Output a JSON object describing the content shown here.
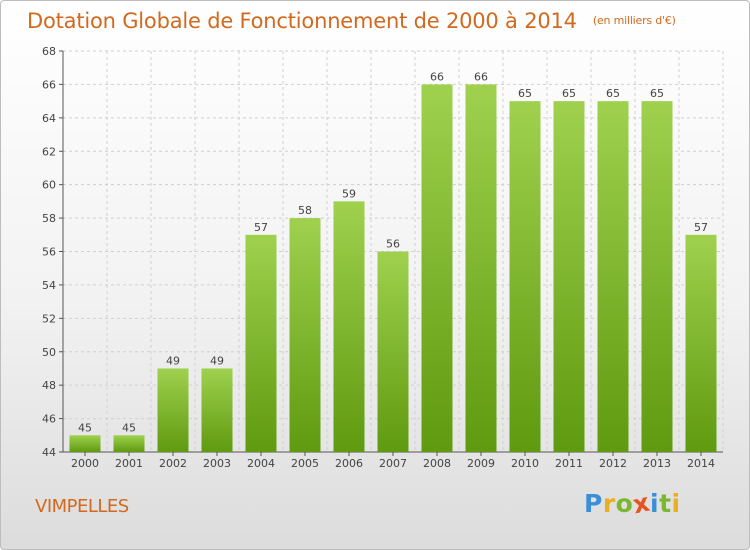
{
  "chart_data": {
    "type": "bar",
    "title": "Dotation Globale de Fonctionnement de 2000 à 2014",
    "subtitle": "(en milliers d'€)",
    "categories": [
      "2000",
      "2001",
      "2002",
      "2003",
      "2004",
      "2005",
      "2006",
      "2007",
      "2008",
      "2009",
      "2010",
      "2011",
      "2012",
      "2013",
      "2014"
    ],
    "values": [
      45,
      45,
      49,
      49,
      57,
      58,
      59,
      56,
      66,
      66,
      65,
      65,
      65,
      65,
      57
    ],
    "ylim": [
      44,
      68
    ],
    "yticks": [
      44,
      46,
      48,
      50,
      52,
      54,
      56,
      58,
      60,
      62,
      64,
      66,
      68
    ],
    "grid": true,
    "colors": {
      "bar_top": "#9fd14e",
      "bar_bottom": "#5f9a10",
      "title": "#d2691e"
    }
  },
  "footer": {
    "place": "VIMPELLES",
    "brand": "Proxiti",
    "brand_letters": [
      {
        "ch": "P",
        "color": "#3b8fd8"
      },
      {
        "ch": "r",
        "color": "#e8b020"
      },
      {
        "ch": "o",
        "color": "#7cb82f"
      },
      {
        "ch": "x",
        "color": "#e8541e"
      },
      {
        "ch": "i",
        "color": "#3b8fd8"
      },
      {
        "ch": "t",
        "color": "#7cb82f"
      },
      {
        "ch": "i",
        "color": "#e8b020"
      }
    ]
  }
}
